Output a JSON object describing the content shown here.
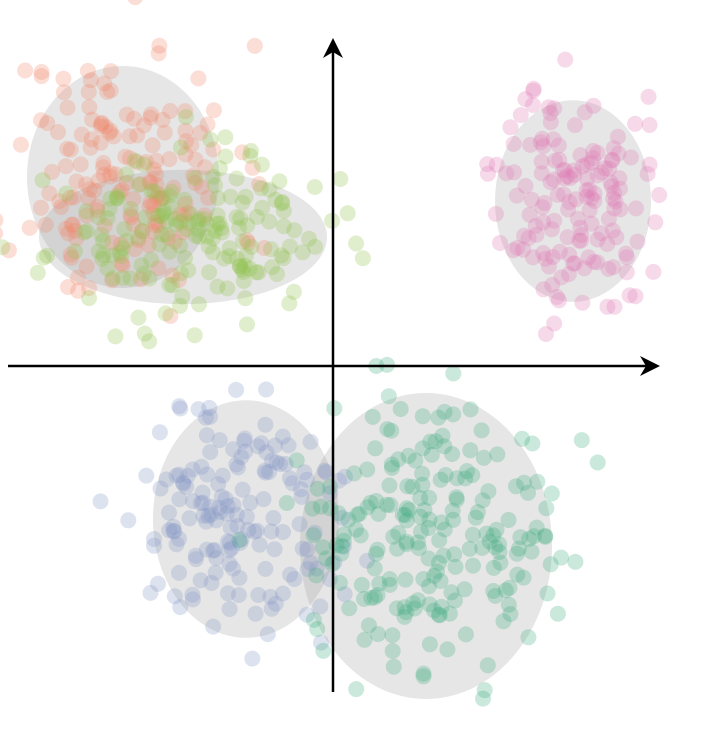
{
  "chart_data": {
    "type": "scatter",
    "title": "",
    "xlabel": "",
    "ylabel": "",
    "xlim": [
      -5.3,
      5.3
    ],
    "ylim": [
      -5.4,
      5.4
    ],
    "axes": "centered-arrows",
    "grid": false,
    "legend": "none",
    "series": [
      {
        "color": "#f08a6a",
        "n": 170,
        "mean": [
          -3.5,
          3.15
        ],
        "sd": [
          0.95,
          1.1
        ],
        "seed": 11,
        "ellipse": {
          "cx": -3.5,
          "cy": 3.15,
          "rx": 1.6,
          "ry": 1.85,
          "rotate": 0
        }
      },
      {
        "color": "#8ec24a",
        "n": 170,
        "mean": [
          -2.4,
          2.15
        ],
        "sd": [
          1.15,
          0.65
        ],
        "seed": 23,
        "ellipse": {
          "cx": -2.5,
          "cy": 2.15,
          "rx": 2.4,
          "ry": 1.12,
          "rotate": 0
        }
      },
      {
        "color": "#e07bb5",
        "n": 150,
        "mean": [
          4.0,
          2.8
        ],
        "sd": [
          0.6,
          0.95
        ],
        "seed": 37,
        "ellipse": {
          "cx": 4.0,
          "cy": 2.75,
          "rx": 1.3,
          "ry": 1.68,
          "rotate": 0
        }
      },
      {
        "color": "#8596c6",
        "n": 160,
        "mean": [
          -1.6,
          -2.55
        ],
        "sd": [
          0.9,
          1.0
        ],
        "seed": 51,
        "ellipse": {
          "cx": -1.45,
          "cy": -2.55,
          "rx": 1.55,
          "ry": 1.98,
          "rotate": 0
        }
      },
      {
        "color": "#42ad82",
        "n": 210,
        "mean": [
          1.5,
          -3.05
        ],
        "sd": [
          1.05,
          1.15
        ],
        "seed": 67,
        "ellipse": {
          "cx": 1.55,
          "cy": -3.0,
          "rx": 2.1,
          "ry": 2.55,
          "rotate": 0
        }
      }
    ]
  }
}
